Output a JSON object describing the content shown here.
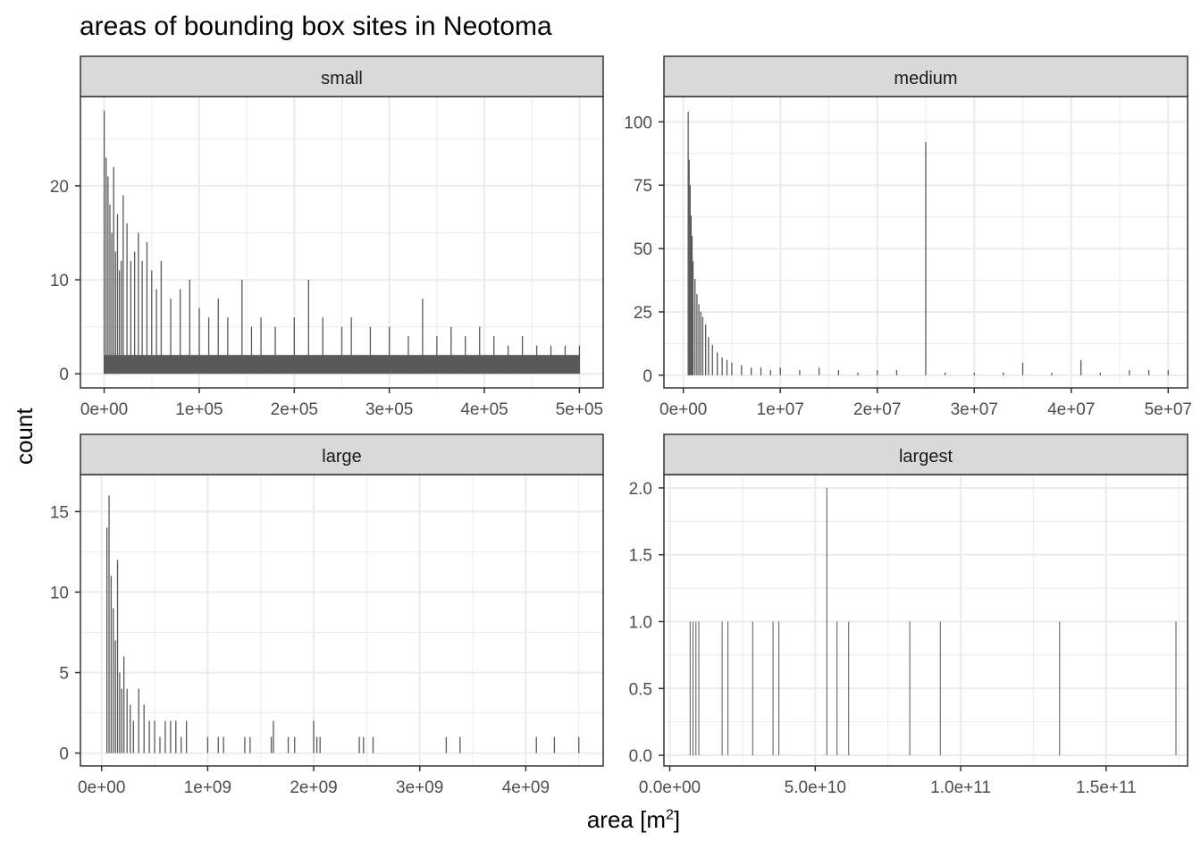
{
  "title": "areas of bounding box sites in Neotoma",
  "xlabel": "area",
  "xlabel_unit": "[m",
  "xlabel_unit_power": "2",
  "xlabel_unit_close": "]",
  "ylabel": "count",
  "colors": {
    "bars": "#595959",
    "strip_fill": "#d9d9d9",
    "grid": "#ebebeb",
    "panel_border": "#333333",
    "tick_text": "#4d4d4d"
  },
  "chart_data": [
    {
      "type": "bar",
      "facet": "small",
      "xlim": [
        -25000,
        525000
      ],
      "ylim": [
        -1.5,
        29.5
      ],
      "xticks": [
        0,
        100000,
        200000,
        300000,
        400000,
        500000
      ],
      "xtick_labels": [
        "0e+00",
        "1e+05",
        "2e+05",
        "3e+05",
        "4e+05",
        "5e+05"
      ],
      "yticks": [
        0,
        10,
        20
      ],
      "ytick_labels": [
        "0",
        "10",
        "20"
      ],
      "bars": {
        "x": [
          0,
          2000,
          4000,
          6000,
          8000,
          10000,
          12000,
          14000,
          16000,
          18000,
          20000,
          24000,
          28000,
          32000,
          36000,
          40000,
          45000,
          50000,
          55000,
          60000,
          70000,
          80000,
          90000,
          100000,
          110000,
          120000,
          130000,
          145000,
          155000,
          165000,
          180000,
          200000,
          215000,
          230000,
          250000,
          260000,
          280000,
          300000,
          320000,
          335000,
          350000,
          365000,
          380000,
          395000,
          410000,
          425000,
          440000,
          455000,
          470000,
          485000,
          500000
        ],
        "y": [
          28,
          23,
          21,
          18,
          15,
          22,
          13,
          17,
          11,
          12,
          19,
          16,
          12,
          13,
          15,
          12,
          14,
          11,
          9,
          12,
          8,
          9,
          10,
          7,
          6,
          8,
          6,
          10,
          5,
          6,
          5,
          6,
          10,
          6,
          5,
          6,
          5,
          5,
          4,
          8,
          4,
          5,
          4,
          5,
          4,
          3,
          4,
          3,
          3,
          3,
          3
        ]
      }
    },
    {
      "type": "bar",
      "facet": "medium",
      "xlim": [
        -2000000,
        52000000
      ],
      "ylim": [
        -5,
        110
      ],
      "xticks": [
        0,
        10000000,
        20000000,
        30000000,
        40000000,
        50000000
      ],
      "xtick_labels": [
        "0e+00",
        "1e+07",
        "2e+07",
        "3e+07",
        "4e+07",
        "5e+07"
      ],
      "yticks": [
        0,
        25,
        50,
        75,
        100
      ],
      "ytick_labels": [
        "0",
        "25",
        "50",
        "75",
        "100"
      ],
      "bars": {
        "x": [
          500000,
          600000,
          700000,
          800000,
          900000,
          1000000,
          1200000,
          1400000,
          1600000,
          1800000,
          2000000,
          2300000,
          2600000,
          3000000,
          3500000,
          4000000,
          4500000,
          5000000,
          6000000,
          7000000,
          8000000,
          9000000,
          10000000,
          12000000,
          14000000,
          16000000,
          18000000,
          20000000,
          22000000,
          25000000,
          27000000,
          30000000,
          33000000,
          35000000,
          38000000,
          41000000,
          43000000,
          46000000,
          48000000,
          50000000
        ],
        "y": [
          104,
          85,
          75,
          63,
          55,
          45,
          38,
          32,
          28,
          25,
          23,
          20,
          15,
          12,
          9,
          7,
          6,
          5,
          4,
          3,
          3,
          2,
          3,
          2,
          3,
          2,
          1,
          2,
          2,
          92,
          1,
          1,
          1,
          5,
          1,
          6,
          1,
          2,
          2,
          2
        ]
      }
    },
    {
      "type": "bar",
      "facet": "large",
      "xlim": [
        -200000000,
        4730000000
      ],
      "ylim": [
        -0.8,
        17.3
      ],
      "xticks": [
        0,
        1000000000,
        2000000000,
        3000000000,
        4000000000
      ],
      "xtick_labels": [
        "0e+00",
        "1e+09",
        "2e+09",
        "3e+09",
        "4e+09"
      ],
      "yticks": [
        0,
        5,
        10,
        15
      ],
      "ytick_labels": [
        "0",
        "5",
        "10",
        "15"
      ],
      "bars": {
        "x": [
          50000000,
          70000000,
          90000000,
          110000000,
          130000000,
          150000000,
          170000000,
          190000000,
          210000000,
          240000000,
          270000000,
          300000000,
          350000000,
          400000000,
          450000000,
          500000000,
          550000000,
          600000000,
          650000000,
          700000000,
          750000000,
          800000000,
          1000000000,
          1100000000,
          1150000000,
          1350000000,
          1400000000,
          1600000000,
          1620000000,
          1760000000,
          1820000000,
          2000000000,
          2030000000,
          2060000000,
          2430000000,
          2470000000,
          2560000000,
          3250000000,
          3380000000,
          4100000000,
          4270000000,
          4500000000
        ],
        "y": [
          14,
          16,
          11,
          9,
          7,
          12,
          5,
          4,
          6,
          4,
          3,
          2,
          4,
          3,
          2,
          2,
          1,
          2,
          2,
          2,
          1,
          2,
          1,
          1,
          1,
          1,
          1,
          1,
          2,
          1,
          1,
          2,
          1,
          1,
          1,
          1,
          1,
          1,
          1,
          1,
          1,
          1
        ]
      }
    },
    {
      "type": "bar",
      "facet": "largest",
      "xlim": [
        -2000000000,
        178000000000
      ],
      "ylim": [
        -0.08,
        2.1
      ],
      "xticks": [
        0,
        50000000000,
        100000000000,
        150000000000
      ],
      "xtick_labels": [
        "0.0e+00",
        "5.0e+10",
        "1.0e+11",
        "1.5e+11"
      ],
      "yticks": [
        0,
        0.5,
        1,
        1.5,
        2
      ],
      "ytick_labels": [
        "0.0",
        "0.5",
        "1.0",
        "1.5",
        "2.0"
      ],
      "bars": {
        "x": [
          7000000000,
          8000000000,
          9000000000,
          10000000000,
          18000000000,
          20000000000,
          28500000000,
          35500000000,
          37500000000,
          54000000000,
          57500000000,
          61500000000,
          82500000000,
          93000000000,
          134000000000,
          174000000000
        ],
        "y": [
          1,
          1,
          1,
          1,
          1,
          1,
          1,
          1,
          1,
          2,
          1,
          1,
          1,
          1,
          1,
          1
        ]
      }
    }
  ]
}
